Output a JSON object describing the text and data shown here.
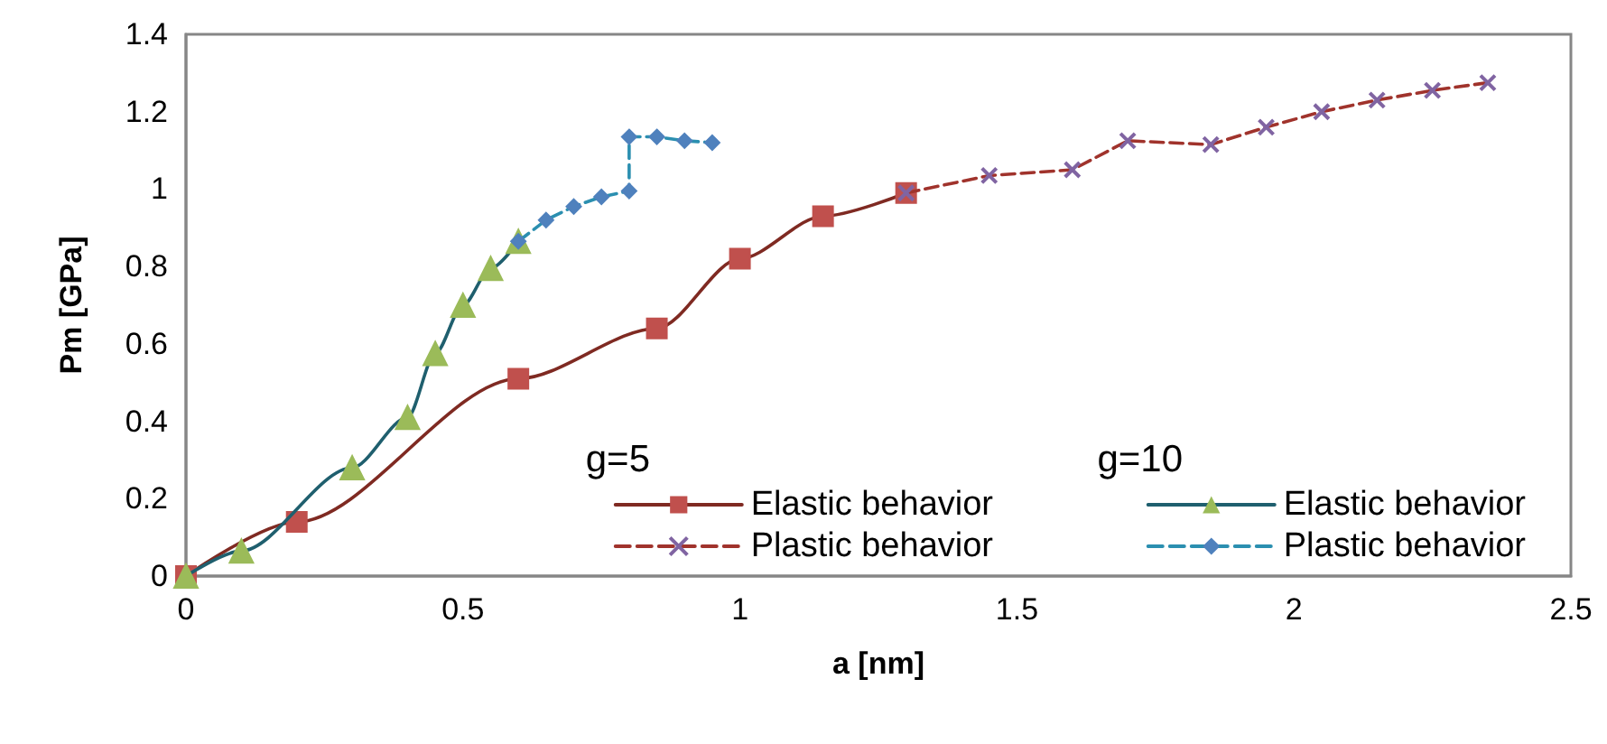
{
  "chart_data": {
    "type": "line",
    "xlabel": "a [nm]",
    "ylabel": "Pm [GPa]",
    "xlim": [
      0,
      2.5
    ],
    "xticks": [
      0,
      0.5,
      1,
      1.5,
      2,
      2.5
    ],
    "ylim": [
      0,
      1.4
    ],
    "yticks": [
      0,
      0.2,
      0.4,
      0.6,
      0.8,
      1,
      1.2,
      1.4
    ],
    "grid": false,
    "legend": "bottom right",
    "annotations": [
      "g=5",
      "g=10"
    ],
    "series": [
      {
        "name": "Elastic behavior",
        "color": "#7f2a22",
        "marker": "square",
        "line_style": "solid",
        "x": [
          0,
          0.2,
          0.6,
          0.85,
          1,
          1.15,
          1.3
        ],
        "values": [
          0,
          0.14,
          0.51,
          0.64,
          0.82,
          0.93,
          0.99
        ]
      },
      {
        "name": "Plastic behavior",
        "color": "#a0332c",
        "marker": "cross",
        "line_style": "dashed",
        "x": [
          1.3,
          1.45,
          1.6,
          1.7,
          1.85,
          1.95,
          2.05,
          2.15,
          2.25,
          2.35
        ],
        "values": [
          0.99,
          1.035,
          1.05,
          1.125,
          1.115,
          1.16,
          1.2,
          1.23,
          1.255,
          1.275
        ]
      },
      {
        "name": "Elastic behavior",
        "color": "#1f5f6e",
        "marker": "triangle",
        "line_style": "solid",
        "x": [
          0,
          0.1,
          0.3,
          0.4,
          0.45,
          0.5,
          0.55,
          0.6
        ],
        "values": [
          0,
          0.065,
          0.28,
          0.41,
          0.575,
          0.7,
          0.795,
          0.865
        ]
      },
      {
        "name": "Plastic behavior",
        "color": "#2b8fb0",
        "marker": "diamond",
        "line_style": "dashed",
        "x": [
          0.6,
          0.65,
          0.7,
          0.75,
          0.8,
          0.8,
          0.85,
          0.9,
          0.95
        ],
        "values": [
          0.865,
          0.92,
          0.955,
          0.98,
          0.995,
          1.135,
          1.135,
          1.125,
          1.12
        ]
      }
    ]
  }
}
